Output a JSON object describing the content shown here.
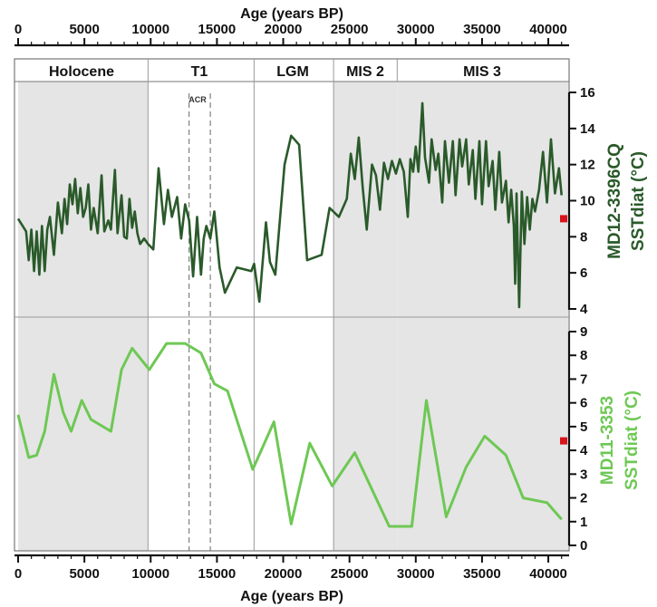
{
  "chart_data": {
    "type": "line",
    "x_axis": {
      "title": "Age (years BP)",
      "range": [
        0,
        41500
      ],
      "ticks_top": [
        "0",
        "5000",
        "10000",
        "15000",
        "20000",
        "25000",
        "30000",
        "35000",
        "40000"
      ],
      "ticks_bottom": [
        "0",
        "5000",
        "10000",
        "15000",
        "20000",
        "25000",
        "30000",
        "35000",
        "40000"
      ]
    },
    "periods": [
      {
        "label": "Holocene",
        "start": 0,
        "end": 9800,
        "shaded": true
      },
      {
        "label": "T1",
        "start": 9800,
        "end": 17800,
        "shaded": false
      },
      {
        "label": "LGM",
        "start": 17800,
        "end": 23800,
        "shaded": false
      },
      {
        "label": "MIS 2",
        "start": 23800,
        "end": 28600,
        "shaded": true
      },
      {
        "label": "MIS 3",
        "start": 28600,
        "end": 41500,
        "shaded": true
      }
    ],
    "acr": {
      "label": "ACR",
      "start": 12900,
      "end": 14500
    },
    "panels": [
      {
        "ylabel_line1": "MD12-3396CQ",
        "ylabel_line2": "SSTdiat (°C)",
        "color": "#2a5a2a",
        "ylim": [
          4,
          16
        ],
        "yticks": [
          "4",
          "6",
          "8",
          "10",
          "12",
          "14",
          "16"
        ],
        "modern_value": 9.0,
        "series": {
          "x": [
            0,
            600,
            800,
            1000,
            1200,
            1400,
            1600,
            1800,
            2000,
            2200,
            2400,
            2700,
            3000,
            3300,
            3500,
            3700,
            3900,
            4100,
            4300,
            4500,
            4700,
            4900,
            5100,
            5300,
            5500,
            5700,
            6000,
            6300,
            6500,
            6800,
            7000,
            7300,
            7500,
            7800,
            8000,
            8200,
            8400,
            8600,
            8800,
            9000,
            9200,
            9500,
            9800,
            10200,
            10600,
            11000,
            11300,
            11600,
            12000,
            12300,
            12600,
            12900,
            13200,
            13500,
            13800,
            14000,
            14200,
            14500,
            14800,
            15200,
            15600,
            16500,
            17600,
            17800,
            18200,
            18700,
            19000,
            19400,
            20100,
            20600,
            21200,
            21800,
            22900,
            23500,
            24200,
            24800,
            25100,
            25400,
            25700,
            26000,
            26300,
            26700,
            27000,
            27300,
            27600,
            27900,
            28200,
            28500,
            28800,
            29100,
            29400,
            29600,
            29800,
            30000,
            30200,
            30500,
            30700,
            31000,
            31200,
            31500,
            31700,
            32000,
            32200,
            32500,
            32800,
            33000,
            33300,
            33500,
            33800,
            34000,
            34300,
            34500,
            34800,
            35000,
            35300,
            35500,
            35800,
            36000,
            36300,
            36500,
            36800,
            37000,
            37200,
            37400,
            37500,
            37600,
            37800,
            38000,
            38200,
            38400,
            38600,
            38800,
            39000,
            39300,
            39600,
            39900,
            40200,
            40500,
            40800,
            41000
          ],
          "y": [
            9.0,
            8.3,
            6.7,
            8.4,
            6.1,
            8.3,
            5.9,
            8.6,
            6.1,
            8.4,
            9.1,
            7.0,
            9.9,
            8.2,
            10.1,
            8.7,
            10.9,
            9.8,
            11.2,
            9.3,
            10.7,
            9.1,
            9.6,
            10.9,
            8.4,
            9.6,
            8.2,
            11.4,
            8.3,
            8.9,
            8.4,
            11.7,
            8.2,
            10.3,
            8.0,
            7.9,
            10.1,
            8.5,
            9.4,
            8.2,
            7.6,
            7.9,
            7.6,
            7.3,
            11.8,
            8.7,
            10.6,
            9.1,
            10.2,
            7.9,
            9.8,
            8.9,
            5.8,
            9.1,
            5.9,
            7.9,
            8.6,
            7.9,
            9.4,
            6.3,
            4.9,
            6.3,
            6.1,
            6.5,
            4.4,
            8.8,
            6.6,
            5.9,
            12.0,
            13.6,
            13.1,
            6.7,
            7.0,
            9.6,
            9.1,
            10.1,
            12.6,
            11.2,
            13.5,
            10.7,
            8.4,
            12.0,
            11.4,
            9.5,
            12.1,
            11.2,
            12.2,
            11.5,
            12.3,
            11.6,
            9.1,
            12.3,
            11.6,
            13.0,
            11.6,
            15.4,
            12.4,
            11.0,
            13.4,
            11.7,
            12.6,
            9.9,
            13.3,
            11.0,
            13.3,
            10.3,
            13.4,
            11.9,
            13.4,
            10.9,
            12.8,
            10.1,
            13.3,
            9.8,
            13.3,
            10.8,
            12.2,
            9.5,
            12.7,
            9.9,
            11.1,
            8.8,
            10.6,
            8.6,
            5.4,
            10.4,
            4.1,
            10.5,
            7.6,
            10.2,
            8.4,
            10.1,
            9.4,
            10.6,
            12.7,
            9.9,
            13.4,
            10.4,
            11.8,
            10.3
          ]
        }
      },
      {
        "ylabel_line1": "MD11-3353",
        "ylabel_line2": "SSTdiat (°C)",
        "color": "#6ec854",
        "ylim": [
          0,
          9
        ],
        "yticks": [
          "0",
          "1",
          "2",
          "3",
          "4",
          "5",
          "6",
          "7",
          "8",
          "9"
        ],
        "modern_value": 4.4,
        "series": {
          "x": [
            0,
            800,
            1400,
            2000,
            2700,
            3400,
            4000,
            4800,
            5500,
            7000,
            7800,
            8600,
            9900,
            11200,
            12600,
            13800,
            14800,
            15800,
            17700,
            19300,
            20600,
            22000,
            23700,
            25400,
            28000,
            29700,
            30800,
            32300,
            33800,
            35200,
            36800,
            38100,
            39900,
            41000
          ],
          "y": [
            5.5,
            3.7,
            3.8,
            4.8,
            7.2,
            5.6,
            4.8,
            6.1,
            5.3,
            4.8,
            7.4,
            8.3,
            7.4,
            8.5,
            8.5,
            8.1,
            6.8,
            6.5,
            3.2,
            5.2,
            0.9,
            4.3,
            2.5,
            3.9,
            0.8,
            0.8,
            6.1,
            1.2,
            3.3,
            4.6,
            3.8,
            2.0,
            1.8,
            1.1
          ]
        }
      }
    ]
  }
}
